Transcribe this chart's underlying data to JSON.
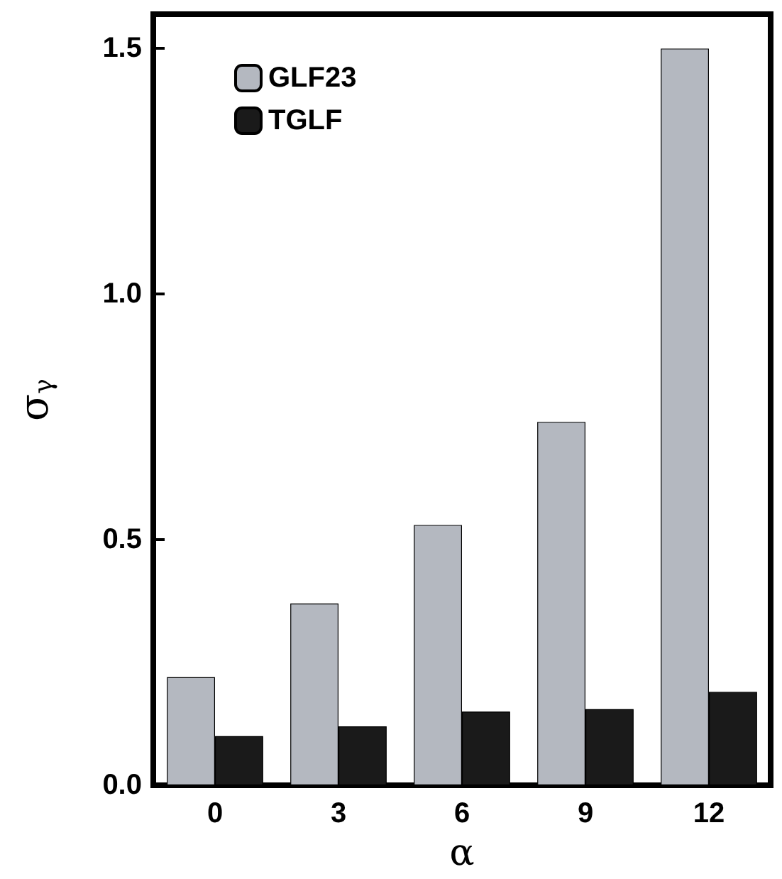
{
  "chart_data": {
    "type": "bar",
    "xlabel": "α",
    "ylabel": "σ$_{γ}$",
    "categories": [
      "0",
      "3",
      "6",
      "9",
      "12"
    ],
    "series": [
      {
        "name": "GLF23",
        "color": "#b4b8c0",
        "values": [
          0.22,
          0.37,
          0.53,
          0.74,
          1.5
        ]
      },
      {
        "name": "TGLF",
        "color": "#1a1a1a",
        "values": [
          0.1,
          0.12,
          0.15,
          0.155,
          0.19
        ]
      }
    ],
    "ylim": [
      0,
      1.57
    ],
    "yticks": [
      {
        "value": 0,
        "label": "0.0"
      },
      {
        "value": 0.5,
        "label": "0.5"
      },
      {
        "value": 1,
        "label": "1.0"
      },
      {
        "value": 1.5,
        "label": "1.5"
      }
    ],
    "grid": false,
    "legend": "top left"
  }
}
